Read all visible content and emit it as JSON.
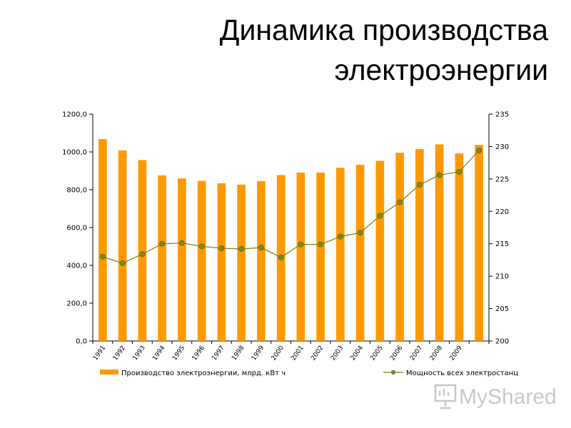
{
  "title_line1": "Динамика производства",
  "title_line2": "электроэнергии",
  "watermark": "MyShared",
  "chart_data": {
    "type": "bar",
    "categories": [
      "1991",
      "1992",
      "1993",
      "1994",
      "1995",
      "1996",
      "1997",
      "1998",
      "1999",
      "2000",
      "2001",
      "2002",
      "2003",
      "2004",
      "2005",
      "2006",
      "2007",
      "2008",
      "2009",
      ""
    ],
    "series": [
      {
        "name": "Производство электроэнергии, млрд. кВт ч",
        "type": "bar",
        "axis": "left",
        "color": "#ff9900",
        "values": [
          1068,
          1008,
          957,
          876,
          860,
          847,
          834,
          827,
          846,
          878,
          891,
          891,
          916,
          932,
          953,
          996,
          1015,
          1040,
          992,
          1037
        ]
      },
      {
        "name": "Мощность всех электростанц",
        "type": "line",
        "axis": "right",
        "color": "#808000",
        "values": [
          213,
          212,
          213.4,
          215,
          215.1,
          214.6,
          214.3,
          214.2,
          214.4,
          212.9,
          214.9,
          214.9,
          216.1,
          216.7,
          219.3,
          221.4,
          224.1,
          225.6,
          226.1,
          229.4
        ]
      }
    ],
    "y_left": {
      "min": 0,
      "max": 1200,
      "step": 200,
      "tick_labels": [
        "0,0",
        "200,0",
        "400,0",
        "600,0",
        "800,0",
        "1000,0",
        "1200,0"
      ]
    },
    "y_right": {
      "min": 200,
      "max": 235,
      "step": 5,
      "tick_labels": [
        "200",
        "205",
        "210",
        "215",
        "220",
        "225",
        "230",
        "235"
      ]
    },
    "grid": false,
    "legend_position": "bottom"
  }
}
